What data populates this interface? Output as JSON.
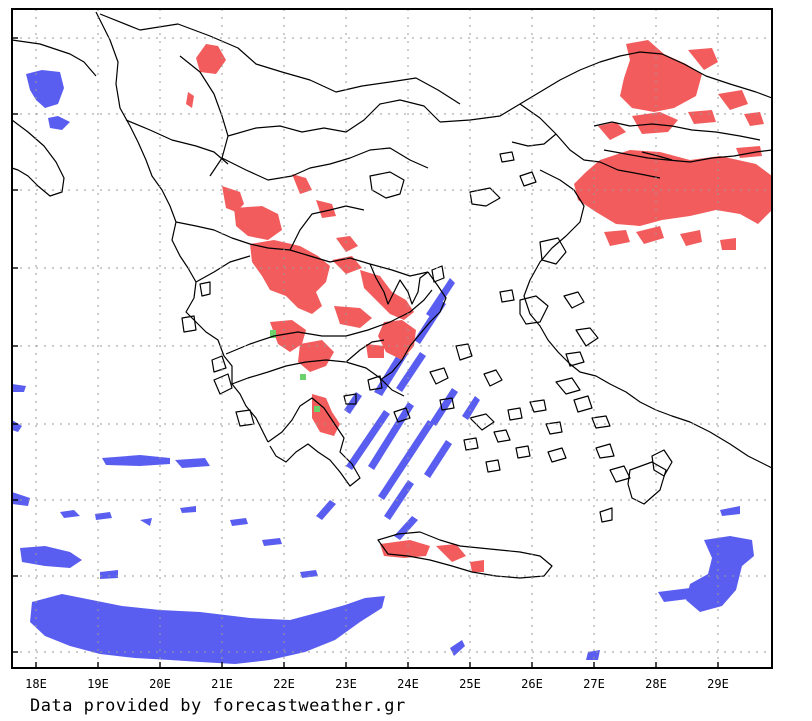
{
  "map": {
    "lon_labels": [
      "18E",
      "19E",
      "20E",
      "21E",
      "22E",
      "23E",
      "24E",
      "25E",
      "26E",
      "27E",
      "28E",
      "29E"
    ],
    "grid_style": "dotted",
    "colors": {
      "frame": "#000000",
      "coastline": "#000000",
      "grid": "#9a9a9a",
      "rain": "#f25c5c",
      "snow": "#5a5ef0",
      "mixed": "#6bd16b"
    }
  },
  "footer": {
    "credit": "Data provided by forecastweather.gr"
  }
}
